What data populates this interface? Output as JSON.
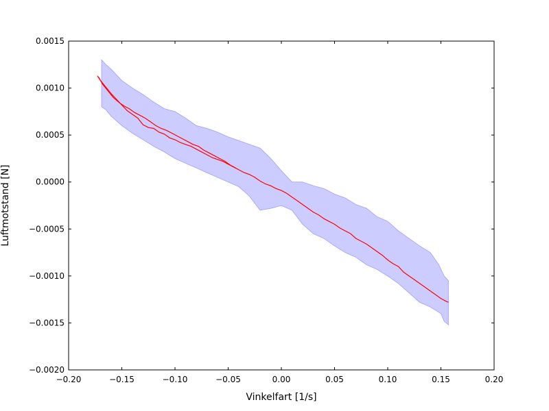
{
  "chart_data": {
    "type": "line",
    "title": "",
    "xlabel": "Vinkelfart [1/s]",
    "ylabel": "Luftmotstand [N]",
    "xlim": [
      -0.2,
      0.2
    ],
    "ylim": [
      -0.002,
      0.0015
    ],
    "grid": false,
    "x_ticks": [
      -0.2,
      -0.15,
      -0.1,
      -0.05,
      0.0,
      0.05,
      0.1,
      0.15,
      0.2
    ],
    "x_tick_labels": [
      "−0.20",
      "−0.15",
      "−0.10",
      "−0.05",
      "0.00",
      "0.05",
      "0.10",
      "0.15",
      "0.20"
    ],
    "y_ticks": [
      -0.002,
      -0.0015,
      -0.001,
      -0.0005,
      0.0,
      0.0005,
      0.001,
      0.0015
    ],
    "y_tick_labels": [
      "−0.0020",
      "−0.0015",
      "−0.0010",
      "−0.0005",
      "0.0000",
      "0.0005",
      "0.0010",
      "0.0015"
    ],
    "colors": {
      "line": "#ff0000",
      "band": "#ccccff",
      "band_edge": "#aaaaff"
    },
    "band": {
      "upper": [
        [
          -0.169,
          0.0013
        ],
        [
          -0.165,
          0.00125
        ],
        [
          -0.16,
          0.0012
        ],
        [
          -0.15,
          0.00108
        ],
        [
          -0.14,
          0.001
        ],
        [
          -0.13,
          0.00093
        ],
        [
          -0.12,
          0.00085
        ],
        [
          -0.11,
          0.00078
        ],
        [
          -0.1,
          0.00075
        ],
        [
          -0.09,
          0.00068
        ],
        [
          -0.08,
          0.0006
        ],
        [
          -0.07,
          0.00057
        ],
        [
          -0.06,
          0.00053
        ],
        [
          -0.05,
          0.00048
        ],
        [
          -0.04,
          0.00044
        ],
        [
          -0.03,
          0.0004
        ],
        [
          -0.02,
          0.00036
        ],
        [
          -0.01,
          0.00025
        ],
        [
          0.0,
          0.00012
        ],
        [
          0.01,
          0.0
        ],
        [
          0.02,
          0.0
        ],
        [
          0.03,
          -4e-05
        ],
        [
          0.04,
          -7e-05
        ],
        [
          0.05,
          -0.00013
        ],
        [
          0.06,
          -0.00017
        ],
        [
          0.07,
          -0.00024
        ],
        [
          0.08,
          -0.00028
        ],
        [
          0.09,
          -0.00037
        ],
        [
          0.1,
          -0.00042
        ],
        [
          0.11,
          -0.00052
        ],
        [
          0.12,
          -0.0006
        ],
        [
          0.13,
          -0.00068
        ],
        [
          0.14,
          -0.00075
        ],
        [
          0.148,
          -0.00088
        ],
        [
          0.153,
          -0.001
        ],
        [
          0.157,
          -0.00105
        ]
      ],
      "lower": [
        [
          -0.169,
          0.0008
        ],
        [
          -0.165,
          0.00077
        ],
        [
          -0.16,
          0.0007
        ],
        [
          -0.15,
          0.0006
        ],
        [
          -0.14,
          0.00052
        ],
        [
          -0.13,
          0.00045
        ],
        [
          -0.12,
          0.00038
        ],
        [
          -0.11,
          0.00032
        ],
        [
          -0.1,
          0.00025
        ],
        [
          -0.09,
          0.0002
        ],
        [
          -0.08,
          0.00015
        ],
        [
          -0.07,
          0.0001
        ],
        [
          -0.06,
          5e-05
        ],
        [
          -0.05,
          0.0
        ],
        [
          -0.04,
          -5e-05
        ],
        [
          -0.03,
          -0.00015
        ],
        [
          -0.02,
          -0.0003
        ],
        [
          -0.01,
          -0.00028
        ],
        [
          0.0,
          -0.00025
        ],
        [
          0.01,
          -0.0003
        ],
        [
          0.02,
          -0.00045
        ],
        [
          0.03,
          -0.00055
        ],
        [
          0.04,
          -0.0006
        ],
        [
          0.05,
          -0.00068
        ],
        [
          0.06,
          -0.00075
        ],
        [
          0.07,
          -0.0008
        ],
        [
          0.08,
          -0.00088
        ],
        [
          0.09,
          -0.00093
        ],
        [
          0.1,
          -0.001
        ],
        [
          0.11,
          -0.00108
        ],
        [
          0.12,
          -0.00118
        ],
        [
          0.13,
          -0.00128
        ],
        [
          0.14,
          -0.00133
        ],
        [
          0.15,
          -0.0014
        ],
        [
          0.153,
          -0.00148
        ],
        [
          0.157,
          -0.00152
        ]
      ]
    },
    "series": [
      {
        "x": [
          -0.173,
          -0.17,
          -0.165,
          -0.16,
          -0.155,
          -0.15,
          -0.145,
          -0.14,
          -0.135,
          -0.13,
          -0.125,
          -0.12,
          -0.115,
          -0.11,
          -0.105,
          -0.1,
          -0.095,
          -0.09,
          -0.085,
          -0.08,
          -0.075,
          -0.07,
          -0.065,
          -0.06,
          -0.055,
          -0.05,
          -0.045,
          -0.04,
          -0.035,
          -0.03,
          -0.025,
          -0.02,
          -0.015,
          -0.01,
          -0.005,
          0.0,
          0.005,
          0.01,
          0.015,
          0.02,
          0.025,
          0.03,
          0.035,
          0.04,
          0.045,
          0.05,
          0.055,
          0.06,
          0.065,
          0.07,
          0.075,
          0.08,
          0.085,
          0.09,
          0.095,
          0.1,
          0.105,
          0.11,
          0.115,
          0.12,
          0.125,
          0.13,
          0.135,
          0.14,
          0.145,
          0.15,
          0.155,
          0.157
        ],
        "y": [
          0.00113,
          0.00108,
          0.00101,
          0.00094,
          0.00088,
          0.00082,
          0.00076,
          0.00072,
          0.00068,
          0.00061,
          0.00058,
          0.00057,
          0.00053,
          0.00051,
          0.00047,
          0.00045,
          0.00042,
          0.0004,
          0.00038,
          0.00035,
          0.00032,
          0.00029,
          0.00026,
          0.00024,
          0.00022,
          0.00019,
          0.00016,
          0.00013,
          0.0001,
          8e-05,
          5e-05,
          1e-05,
          -2e-05,
          -4e-05,
          -7e-05,
          -9e-05,
          -0.00012,
          -0.00016,
          -0.0002,
          -0.00024,
          -0.00028,
          -0.00032,
          -0.00035,
          -0.00039,
          -0.00042,
          -0.00045,
          -0.00049,
          -0.00052,
          -0.00055,
          -0.0006,
          -0.00063,
          -0.00066,
          -0.0007,
          -0.00074,
          -0.00078,
          -0.00083,
          -0.00087,
          -0.0009,
          -0.00096,
          -0.001,
          -0.00104,
          -0.00108,
          -0.00112,
          -0.00116,
          -0.0012,
          -0.00124,
          -0.00127,
          -0.00128
        ]
      },
      {
        "x": [
          -0.172,
          -0.168,
          -0.163,
          -0.158,
          -0.153,
          -0.148,
          -0.143,
          -0.138,
          -0.133,
          -0.128,
          -0.123,
          -0.118,
          -0.113,
          -0.108,
          -0.103,
          -0.098,
          -0.093,
          -0.088,
          -0.083,
          -0.078,
          -0.073,
          -0.068,
          -0.063,
          -0.058,
          -0.053,
          -0.048,
          -0.043
        ],
        "y": [
          0.00112,
          0.00104,
          0.00097,
          0.0009,
          0.00085,
          0.00081,
          0.00078,
          0.00074,
          0.00071,
          0.00068,
          0.00064,
          0.0006,
          0.00057,
          0.00055,
          0.00052,
          0.00049,
          0.00046,
          0.00043,
          0.0004,
          0.00038,
          0.00034,
          0.00031,
          0.00028,
          0.00025,
          0.00022,
          0.00018,
          0.00015
        ]
      }
    ]
  }
}
